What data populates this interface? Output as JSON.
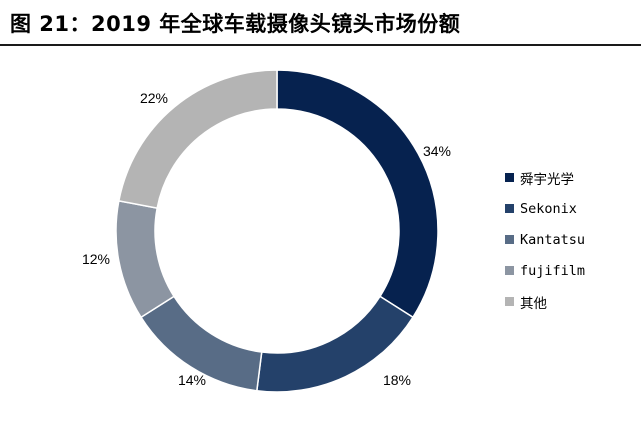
{
  "title": "图 21：2019 年全球车载摄像头镜头市场份额",
  "chart_data": {
    "type": "pie",
    "style": "donut",
    "series": [
      {
        "name": "舜宇光学",
        "value": 34,
        "label": "34%",
        "color": "#06224f"
      },
      {
        "name": "Sekonix",
        "value": 18,
        "label": "18%",
        "color": "#24416a"
      },
      {
        "name": "Kantatsu",
        "value": 14,
        "label": "14%",
        "color": "#586c86"
      },
      {
        "name": "fujifilm",
        "value": 12,
        "label": "12%",
        "color": "#8c95a2"
      },
      {
        "name": "其他",
        "value": 22,
        "label": "22%",
        "color": "#b4b4b4"
      }
    ],
    "legend_position": "right"
  }
}
